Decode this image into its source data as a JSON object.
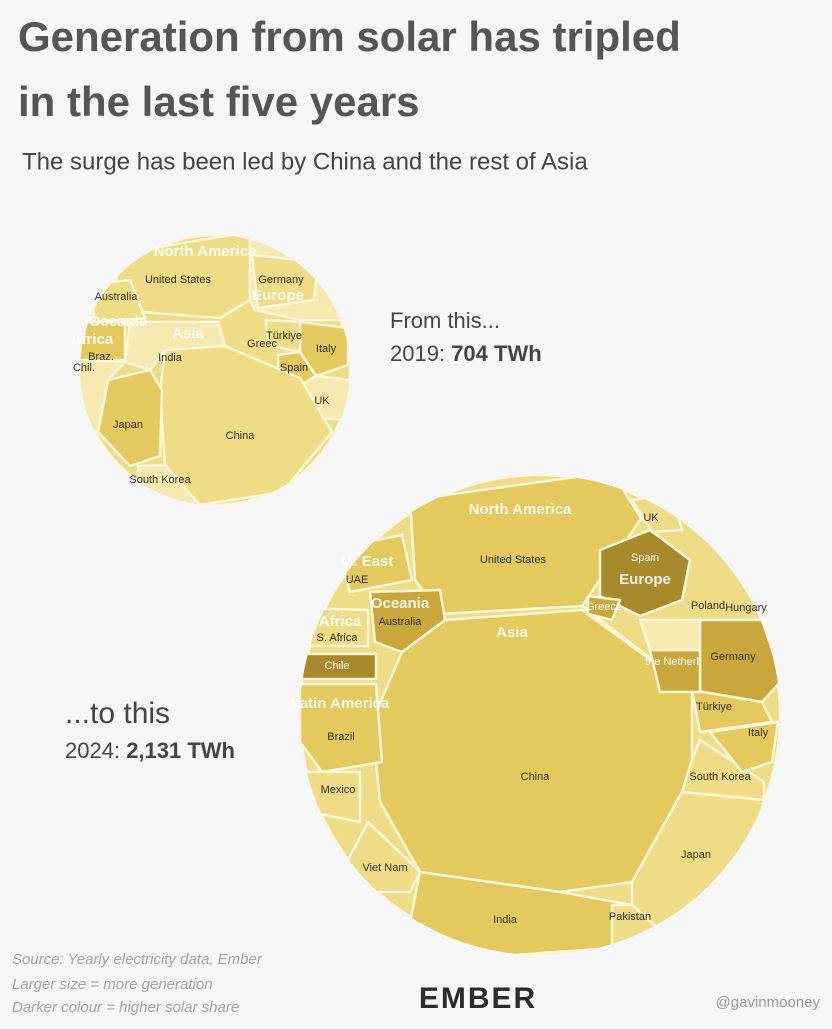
{
  "header": {
    "title_line1": "Generation from solar has tripled",
    "title_line2": "in the last five years",
    "subtitle": "The surge has been led by China and the rest of Asia"
  },
  "panels": [
    {
      "caption": "From this...",
      "year": "2019:",
      "total": "704 TWh",
      "labels": [
        "North America",
        "United States",
        "Germany",
        "Europe",
        "Australia",
        "Oceania",
        "Asia",
        "India",
        "Türkiye",
        "Italy",
        "Spain",
        "UK",
        "Japan",
        "China",
        "South Korea",
        "Braz.",
        "Chil.",
        "Africa",
        "Greec"
      ]
    },
    {
      "caption": "...to this",
      "year": "2024:",
      "total": "2,131 TWh",
      "labels": [
        "North America",
        "United States",
        "Asia",
        "China",
        "India",
        "Japan",
        "South Korea",
        "Pakistan",
        "Viet Nam",
        "Spain",
        "Europe",
        "Germany",
        "Türkiye",
        "Italy",
        "the Netherl",
        "UK",
        "Poland",
        "Hungary",
        "Greece",
        "Oceania",
        "Australia",
        "M. East",
        "UAE",
        "Africa",
        "S. Africa",
        "Chile",
        "Latin America",
        "Brazil",
        "Mexico"
      ]
    }
  ],
  "footer": {
    "source": "Source: Yearly electricity data, Ember",
    "note1": "Larger size = more generation",
    "note2": "Darker colour = higher solar share",
    "logo": "EMBER",
    "handle": "@gavinmooney"
  }
}
